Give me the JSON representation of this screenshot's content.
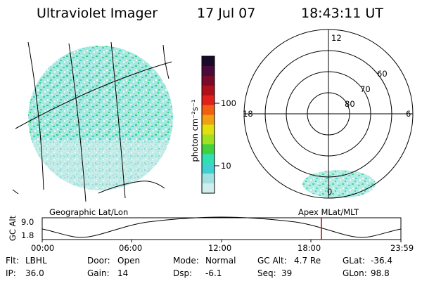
{
  "header": {
    "instrument": "Ultraviolet Imager",
    "date": "17 Jul 07",
    "time": "18:43:11 UT"
  },
  "colorbar": {
    "unit_label": "photon cm⁻²s⁻¹",
    "ticks": [
      "100",
      "10"
    ],
    "colors": [
      "#1a0a2a",
      "#4a0a3a",
      "#7a0a2a",
      "#b0101a",
      "#e0201a",
      "#f06010",
      "#f0a010",
      "#e0e010",
      "#a0e020",
      "#40d040",
      "#30e0b0",
      "#40d0d0",
      "#a0e0e0",
      "#d0eeee"
    ]
  },
  "polar_plot": {
    "mlt_labels": {
      "top": "12",
      "left": "18",
      "right": "6",
      "bottom": "0"
    },
    "lat_labels": [
      "60",
      "70",
      "80"
    ]
  },
  "left_panel": {
    "caption": "Geographic Lat/Lon"
  },
  "right_panel": {
    "caption": "Apex MLat/MLT"
  },
  "altitude_plot": {
    "ylabel": "GC Alt",
    "yticks": [
      "9.0",
      "1.8"
    ],
    "xticks": [
      "00:00",
      "06:00",
      "12:00",
      "18:00",
      "23:59"
    ],
    "current_time": "18:43"
  },
  "info": {
    "filter_label": "Flt:",
    "filter_value": "LBHL",
    "ip_label": "IP:",
    "ip_value": "36.0",
    "door_label": "Door:",
    "door_value": "Open",
    "gain_label": "Gain:",
    "gain_value": "14",
    "mode_label": "Mode:",
    "mode_value": "Normal",
    "dsp_label": "Dsp:",
    "dsp_value": "-6.1",
    "gcalt_label": "GC Alt:",
    "gcalt_value": "4.7 Re",
    "seq_label": "Seq:",
    "seq_value": "39",
    "glat_label": "GLat:",
    "glat_value": "-36.4",
    "glon_label": "GLon:",
    "glon_value": "98.8"
  }
}
